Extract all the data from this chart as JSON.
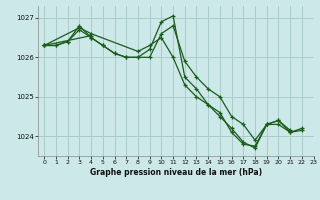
{
  "title": "Graphe pression niveau de la mer (hPa)",
  "bg_color": "#cce8e8",
  "grid_color": "#aacccc",
  "line_color": "#1a5c1a",
  "xlim": [
    -0.5,
    23
  ],
  "ylim": [
    1023.5,
    1027.3
  ],
  "yticks": [
    1024,
    1025,
    1026,
    1027
  ],
  "xticks": [
    0,
    1,
    2,
    3,
    4,
    5,
    6,
    7,
    8,
    9,
    10,
    11,
    12,
    13,
    14,
    15,
    16,
    17,
    18,
    19,
    20,
    21,
    22,
    23
  ],
  "series": [
    [
      0,
      1026.3,
      1,
      1026.3,
      2,
      1026.4,
      3,
      1026.7,
      4,
      1026.5,
      5,
      1026.3,
      6,
      1026.1,
      7,
      1026.0,
      8,
      1026.0,
      9,
      1026.0,
      10,
      1026.6,
      11,
      1026.8,
      12,
      1025.9,
      13,
      1025.5,
      14,
      1025.2,
      15,
      1025.0,
      16,
      1024.5,
      17,
      1024.3,
      18,
      1023.9,
      19,
      1024.3,
      20,
      1024.3,
      21,
      1024.1,
      22,
      1024.2
    ],
    [
      0,
      1026.3,
      1,
      1026.3,
      2,
      1026.4,
      3,
      1026.8,
      4,
      1026.5,
      5,
      1026.3,
      6,
      1026.1,
      7,
      1026.0,
      8,
      1026.0,
      9,
      1026.2,
      10,
      1026.9,
      11,
      1027.05,
      12,
      1025.5,
      13,
      1025.2,
      14,
      1024.8,
      15,
      1024.6,
      16,
      1024.1,
      17,
      1023.8,
      18,
      1023.75,
      19,
      1024.3,
      20,
      1024.4,
      21,
      1024.1,
      22,
      1024.15
    ],
    [
      0,
      1026.3,
      3,
      1026.75,
      4,
      1026.6,
      8,
      1026.15,
      9,
      1026.3,
      10,
      1026.5,
      11,
      1026.0,
      12,
      1025.3,
      13,
      1025.0,
      14,
      1024.8,
      15,
      1024.5,
      16,
      1024.2,
      17,
      1023.85,
      18,
      1023.7,
      19,
      1024.3,
      20,
      1024.4,
      21,
      1024.15
    ],
    [
      0,
      1026.3,
      4,
      1026.55
    ]
  ]
}
